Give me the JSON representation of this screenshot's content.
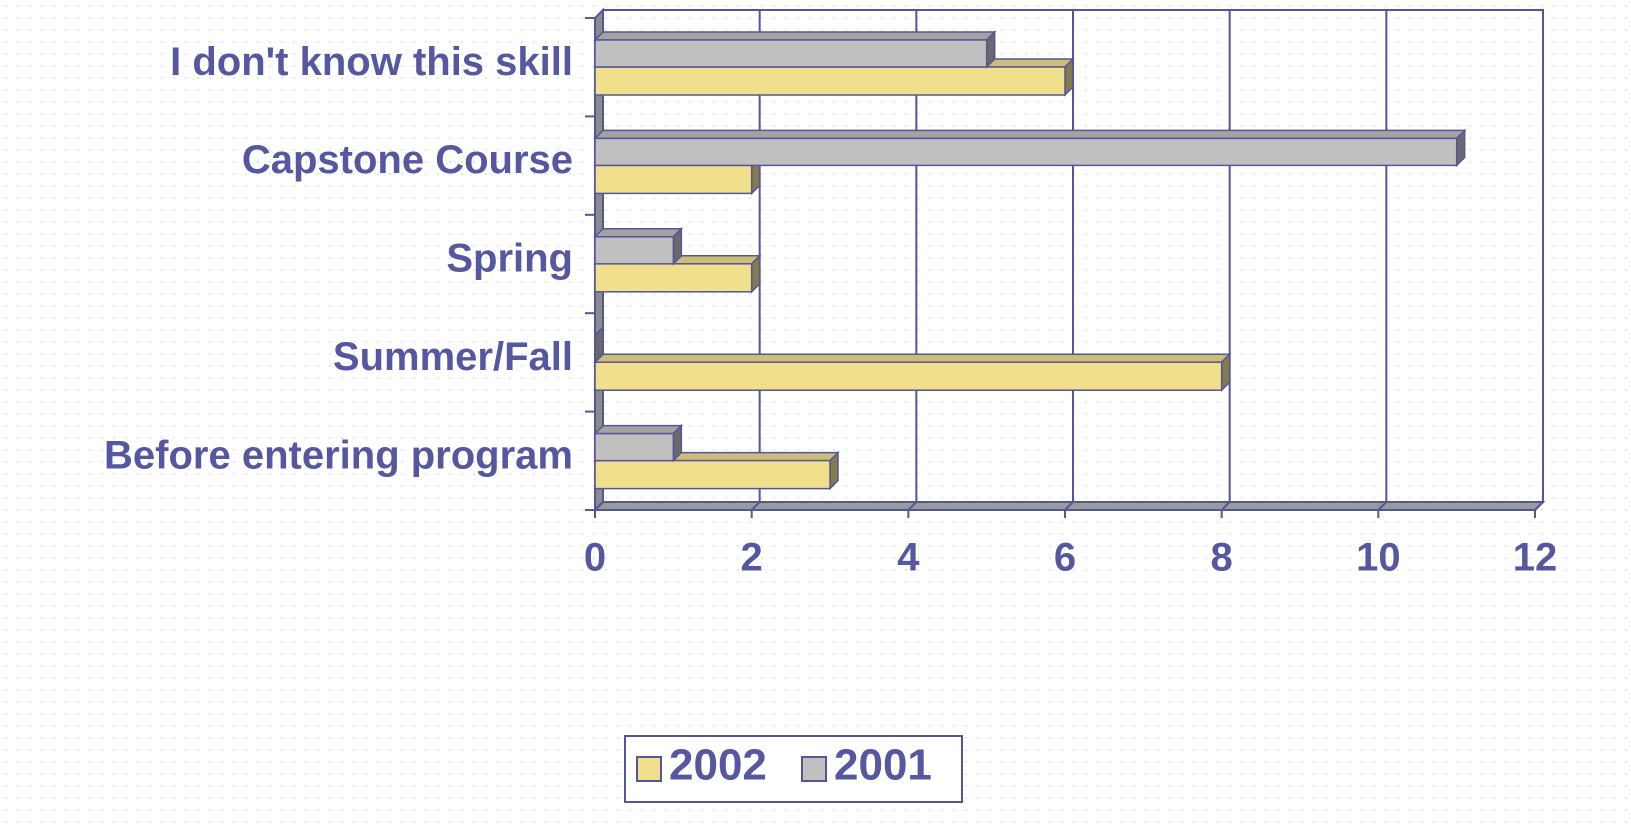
{
  "chart_data": {
    "type": "bar",
    "orientation": "horizontal",
    "categories": [
      "I don't know this skill",
      "Capstone Course",
      "Spring",
      "Summer/Fall",
      "Before entering program"
    ],
    "series": [
      {
        "name": "2002",
        "color": "#f0e08c",
        "values": [
          6,
          2,
          2,
          8,
          3
        ]
      },
      {
        "name": "2001",
        "color": "#c0c0c0",
        "values": [
          5,
          11,
          1,
          0,
          1
        ]
      }
    ],
    "xlim": [
      0,
      12
    ],
    "xticks": [
      0,
      2,
      4,
      6,
      8,
      10,
      12
    ],
    "grid": true,
    "legend": "bottom"
  }
}
